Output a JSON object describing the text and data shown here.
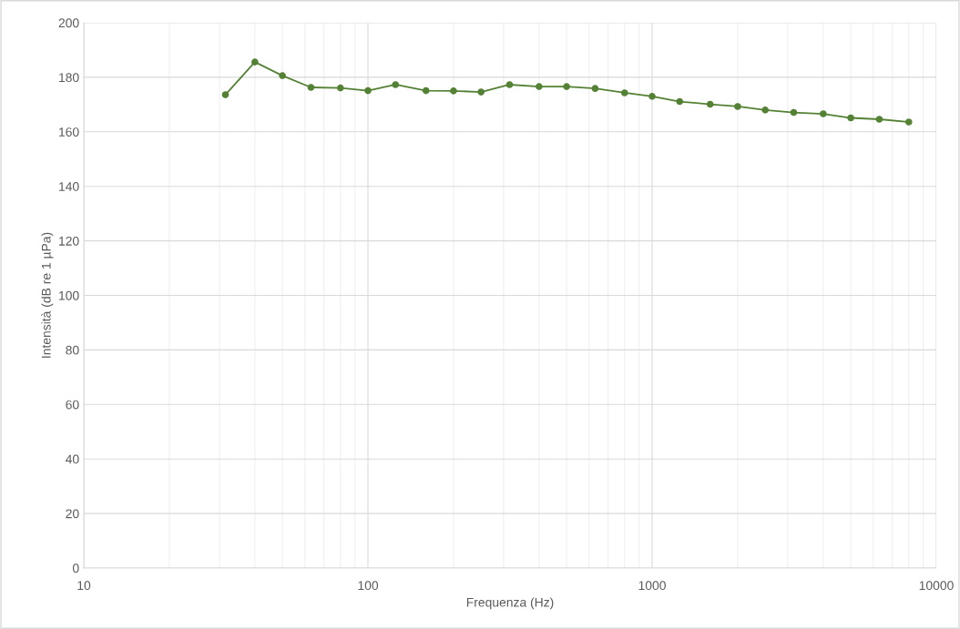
{
  "chart_data": {
    "type": "line",
    "xlabel": "Frequenza (Hz)",
    "ylabel": "Intensità (dB re 1 µPa)",
    "x": [
      31.5,
      40,
      50,
      63,
      80,
      100,
      125,
      160,
      200,
      250,
      315,
      400,
      500,
      630,
      800,
      1000,
      1250,
      1600,
      2000,
      2500,
      3150,
      4000,
      5000,
      6300,
      8000
    ],
    "series": [
      {
        "color": "#548235",
        "values": [
          173.6,
          185.6,
          180.6,
          176.3,
          176.1,
          175.1,
          177.3,
          175.1,
          175,
          174.6,
          177.3,
          176.6,
          176.6,
          175.9,
          174.3,
          173,
          171.1,
          170.1,
          169.3,
          168,
          167.1,
          166.6,
          165.1,
          164.6,
          163.6
        ]
      }
    ],
    "log": "x",
    "xlim": [
      10,
      10000
    ],
    "xticks": [
      10,
      100,
      1000,
      10000
    ],
    "ylim": [
      0,
      200
    ],
    "yticks": [
      0,
      20,
      40,
      60,
      80,
      100,
      120,
      140,
      160,
      180,
      200
    ],
    "grid": true,
    "marker": "circle",
    "line_style": "solid"
  }
}
